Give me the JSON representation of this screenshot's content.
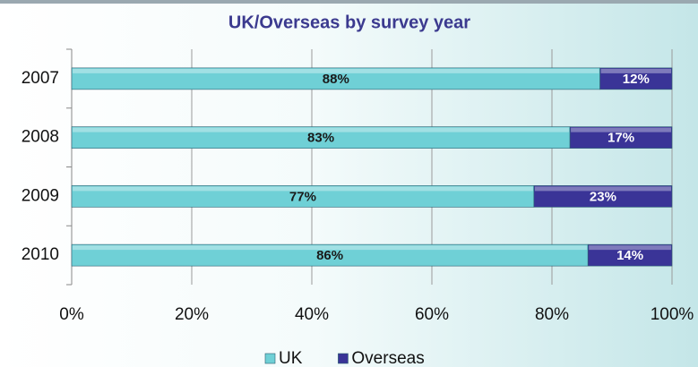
{
  "chart_data": {
    "type": "stacked_bar_horizontal",
    "title": "UK/Overseas by survey year",
    "categories": [
      "2007",
      "2008",
      "2009",
      "2010"
    ],
    "series": [
      {
        "name": "UK",
        "color": "#6fd0d6",
        "values": [
          88,
          83,
          77,
          86
        ],
        "value_labels": [
          "88%",
          "83%",
          "77%",
          "86%"
        ]
      },
      {
        "name": "Overseas",
        "color": "#3a3497",
        "values": [
          12,
          17,
          23,
          14
        ],
        "value_labels": [
          "12%",
          "17%",
          "23%",
          "14%"
        ]
      }
    ],
    "xlim": [
      0,
      100
    ],
    "xticks": [
      {
        "value": 0,
        "label": "0%"
      },
      {
        "value": 20,
        "label": "20%"
      },
      {
        "value": 40,
        "label": "40%"
      },
      {
        "value": 60,
        "label": "60%"
      },
      {
        "value": 80,
        "label": "80%"
      },
      {
        "value": 100,
        "label": "100%"
      }
    ],
    "grid": true,
    "legend": "bottom"
  }
}
